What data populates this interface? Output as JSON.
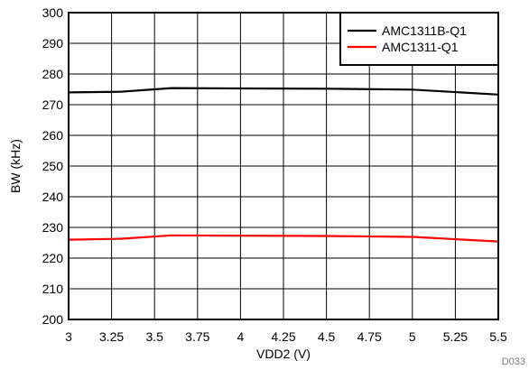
{
  "chart_data": {
    "type": "line",
    "xlabel": "VDD2 (V)",
    "ylabel": "BW (kHz)",
    "xlim": [
      3,
      5.5
    ],
    "ylim": [
      200,
      300
    ],
    "x_ticks": [
      3,
      3.25,
      3.5,
      3.75,
      4,
      4.25,
      4.5,
      4.75,
      5,
      5.25,
      5.5
    ],
    "x_tick_labels": [
      "3",
      "3.25",
      "3.5",
      "3.75",
      "4",
      "4.25",
      "4.5",
      "4.75",
      "5",
      "5.25",
      "5.5"
    ],
    "y_ticks": [
      200,
      210,
      220,
      230,
      240,
      250,
      260,
      270,
      280,
      290,
      300
    ],
    "y_tick_labels": [
      "200",
      "210",
      "220",
      "230",
      "240",
      "250",
      "260",
      "270",
      "280",
      "290",
      "300"
    ],
    "grid": true,
    "legend_position": "top-right",
    "series": [
      {
        "name": "AMC1311B-Q1",
        "color": "#000000",
        "x": [
          3,
          3.3,
          3.6,
          4,
          4.5,
          5,
          5.5
        ],
        "y": [
          274,
          274.2,
          275.4,
          275.3,
          275.2,
          274.9,
          273.3
        ]
      },
      {
        "name": "AMC1311-Q1",
        "color": "#ff0000",
        "x": [
          3,
          3.3,
          3.6,
          4,
          4.5,
          5,
          5.5
        ],
        "y": [
          226,
          226.3,
          227.4,
          227.3,
          227.2,
          226.9,
          225.4
        ]
      }
    ],
    "figure_code": "D033"
  }
}
